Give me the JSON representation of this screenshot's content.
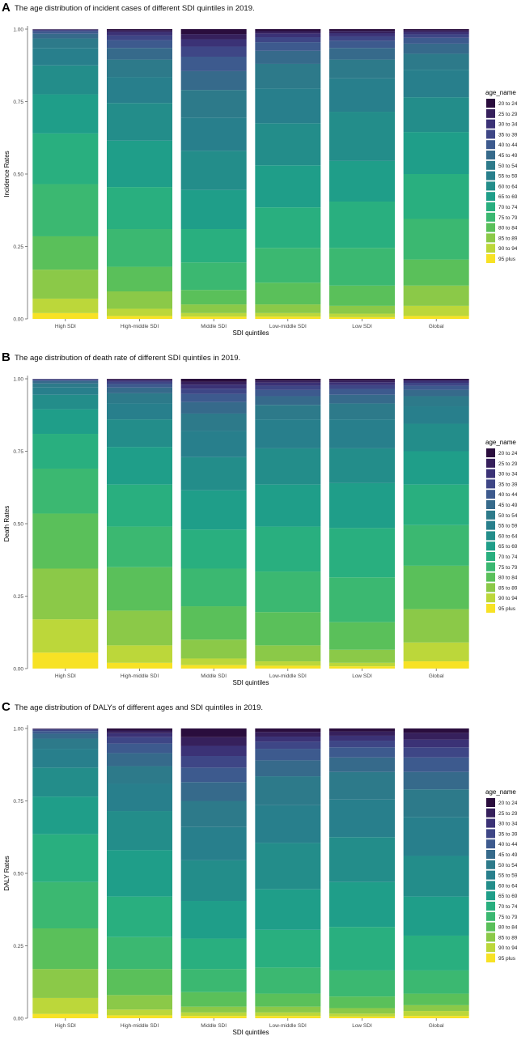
{
  "figure": {
    "axis_ticks": [
      "0.00",
      "0.25",
      "0.50",
      "0.75",
      "1.00"
    ],
    "legend_title": "age_name",
    "age_groups": [
      "20 to 24",
      "25 to 29",
      "30 to 34",
      "35 to 39",
      "40 to 44",
      "45 to 49",
      "50 to 54",
      "55 to 59",
      "60 to 64",
      "65 to 69",
      "70 to 74",
      "75 to 79",
      "80 to 84",
      "85 to 89",
      "90 to 94",
      "95 plus"
    ],
    "age_colors": [
      "#2a0d3d",
      "#36205c",
      "#3b3276",
      "#3e4686",
      "#3d5a8e",
      "#366a8b",
      "#2d7a8a",
      "#287f8c",
      "#238d8a",
      "#1f9e89",
      "#29af7f",
      "#3bb871",
      "#5ac05a",
      "#8bc948",
      "#bcd73a",
      "#f7e225"
    ]
  },
  "chart_data": [
    {
      "type": "stacked-bar",
      "panel_letter": "A",
      "title": "The age distribution of incident cases of different SDI quintiles in 2019.",
      "xlabel": "SDI quintiles",
      "ylabel": "Incidence Rates",
      "ylim": [
        0,
        1
      ],
      "categories": [
        "High SDI",
        "High-middle SDI",
        "Middle SDI",
        "Low-middle SDI",
        "Low SDI",
        "Global"
      ],
      "boundaries": [
        [
          0.02,
          0.07,
          0.17,
          0.285,
          0.465,
          0.64,
          0.775,
          0.875,
          0.935,
          0.968,
          0.984,
          0.992,
          0.996,
          0.998,
          0.999
        ],
        [
          0.01,
          0.035,
          0.095,
          0.18,
          0.31,
          0.455,
          0.615,
          0.745,
          0.835,
          0.895,
          0.935,
          0.962,
          0.978,
          0.99,
          0.996
        ],
        [
          0.008,
          0.02,
          0.05,
          0.1,
          0.195,
          0.31,
          0.445,
          0.58,
          0.695,
          0.79,
          0.855,
          0.905,
          0.94,
          0.965,
          0.983
        ],
        [
          0.008,
          0.02,
          0.05,
          0.125,
          0.245,
          0.385,
          0.53,
          0.675,
          0.795,
          0.88,
          0.925,
          0.955,
          0.972,
          0.985,
          0.993
        ],
        [
          0.006,
          0.018,
          0.045,
          0.115,
          0.245,
          0.405,
          0.545,
          0.715,
          0.83,
          0.895,
          0.935,
          0.96,
          0.975,
          0.986,
          0.994
        ],
        [
          0.01,
          0.045,
          0.115,
          0.205,
          0.345,
          0.5,
          0.645,
          0.765,
          0.86,
          0.915,
          0.95,
          0.97,
          0.982,
          0.99,
          0.996
        ]
      ]
    },
    {
      "type": "stacked-bar",
      "panel_letter": "B",
      "title": "The age distribution of death rate of different SDI quintiles in 2019.",
      "xlabel": "SDI quintiles",
      "ylabel": "Death Rates",
      "ylim": [
        0,
        1
      ],
      "categories": [
        "High SDI",
        "High-middle SDI",
        "Middle SDI",
        "Low-middle SDI",
        "Low SDI",
        "Global"
      ],
      "boundaries": [
        [
          0.055,
          0.17,
          0.345,
          0.535,
          0.69,
          0.81,
          0.895,
          0.945,
          0.97,
          0.984,
          0.992,
          0.996,
          0.998,
          0.999,
          1.0
        ],
        [
          0.02,
          0.08,
          0.2,
          0.35,
          0.49,
          0.635,
          0.765,
          0.86,
          0.915,
          0.95,
          0.97,
          0.982,
          0.99,
          0.995,
          0.998
        ],
        [
          0.012,
          0.035,
          0.1,
          0.215,
          0.345,
          0.48,
          0.615,
          0.73,
          0.82,
          0.88,
          0.92,
          0.948,
          0.966,
          0.98,
          0.99
        ],
        [
          0.01,
          0.025,
          0.08,
          0.195,
          0.335,
          0.49,
          0.635,
          0.76,
          0.86,
          0.91,
          0.94,
          0.962,
          0.976,
          0.987,
          0.994
        ],
        [
          0.008,
          0.02,
          0.065,
          0.16,
          0.315,
          0.485,
          0.64,
          0.76,
          0.86,
          0.915,
          0.945,
          0.965,
          0.978,
          0.988,
          0.995
        ],
        [
          0.025,
          0.09,
          0.205,
          0.355,
          0.495,
          0.635,
          0.75,
          0.845,
          0.905,
          0.94,
          0.962,
          0.976,
          0.986,
          0.993,
          0.997
        ]
      ]
    },
    {
      "type": "stacked-bar",
      "panel_letter": "C",
      "title": "The age distribution of DALYs of different ages and SDI quintiles in 2019.",
      "xlabel": "SDI quintiles",
      "ylabel": "DALY Rates",
      "ylim": [
        0,
        1
      ],
      "categories": [
        "High SDI",
        "High-middle SDI",
        "Middle SDI",
        "Low-middle SDI",
        "Low SDI",
        "Global"
      ],
      "boundaries": [
        [
          0.015,
          0.07,
          0.17,
          0.31,
          0.47,
          0.635,
          0.765,
          0.865,
          0.93,
          0.965,
          0.982,
          0.991,
          0.996,
          0.998,
          0.999
        ],
        [
          0.01,
          0.03,
          0.08,
          0.17,
          0.28,
          0.42,
          0.58,
          0.715,
          0.81,
          0.87,
          0.915,
          0.948,
          0.97,
          0.984,
          0.993
        ],
        [
          0.008,
          0.02,
          0.04,
          0.09,
          0.17,
          0.275,
          0.405,
          0.545,
          0.66,
          0.75,
          0.815,
          0.865,
          0.905,
          0.94,
          0.97
        ],
        [
          0.008,
          0.02,
          0.04,
          0.085,
          0.175,
          0.305,
          0.445,
          0.605,
          0.735,
          0.835,
          0.89,
          0.93,
          0.955,
          0.972,
          0.988
        ],
        [
          0.006,
          0.016,
          0.035,
          0.075,
          0.165,
          0.315,
          0.47,
          0.625,
          0.755,
          0.85,
          0.9,
          0.935,
          0.958,
          0.975,
          0.99
        ],
        [
          0.008,
          0.025,
          0.045,
          0.085,
          0.165,
          0.285,
          0.42,
          0.56,
          0.695,
          0.79,
          0.85,
          0.9,
          0.935,
          0.962,
          0.985
        ]
      ]
    }
  ]
}
